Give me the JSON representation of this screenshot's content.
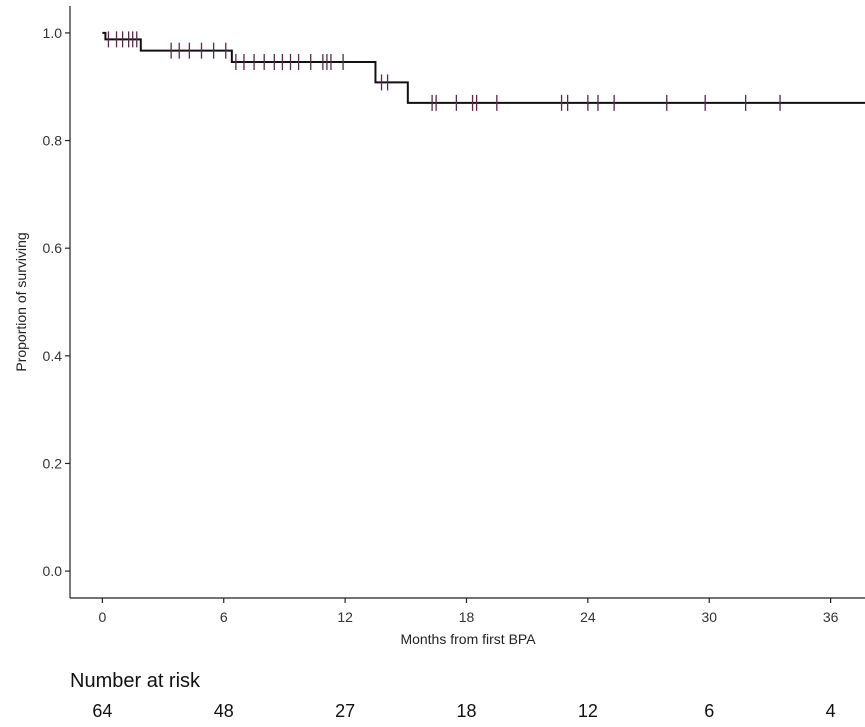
{
  "chart_data": {
    "type": "line",
    "title": "",
    "xlabel": "Months from first BPA",
    "ylabel": "Proportion of surviving",
    "xlim": [
      -1.6,
      37.7
    ],
    "ylim": [
      -0.05,
      1.05
    ],
    "x_ticks": [
      0,
      6,
      12,
      18,
      24,
      30,
      36
    ],
    "y_ticks": [
      0.0,
      0.2,
      0.4,
      0.6,
      0.8,
      1.0
    ],
    "y_tick_labels": [
      "0.0",
      "0.2",
      "0.4",
      "0.6",
      "0.8",
      "1.0"
    ],
    "grid": false,
    "series": [
      {
        "steps": [
          {
            "x": 0,
            "y": 1.0
          },
          {
            "x": 0.15,
            "y": 0.988
          },
          {
            "x": 1.9,
            "y": 0.967
          },
          {
            "x": 6.4,
            "y": 0.946
          },
          {
            "x": 13.5,
            "y": 0.908
          },
          {
            "x": 15.1,
            "y": 0.87
          },
          {
            "x": 37.7,
            "y": 0.87
          }
        ],
        "censored": [
          0.3,
          0.7,
          1.0,
          1.3,
          1.5,
          1.7,
          3.4,
          3.8,
          4.3,
          4.9,
          5.5,
          6.1,
          6.6,
          7.0,
          7.5,
          8.0,
          8.5,
          8.9,
          9.3,
          9.7,
          10.3,
          10.9,
          11.1,
          11.3,
          11.9,
          13.8,
          14.1,
          16.3,
          16.5,
          17.5,
          18.3,
          18.5,
          19.5,
          22.7,
          23.0,
          24.0,
          24.5,
          25.3,
          27.9,
          29.8,
          31.8,
          33.5
        ]
      }
    ],
    "risk_table": {
      "title": "Number at risk",
      "times": [
        0,
        6,
        12,
        18,
        24,
        30,
        36
      ],
      "counts": [
        "64",
        "48",
        "27",
        "18",
        "12",
        "6",
        "4"
      ]
    }
  }
}
